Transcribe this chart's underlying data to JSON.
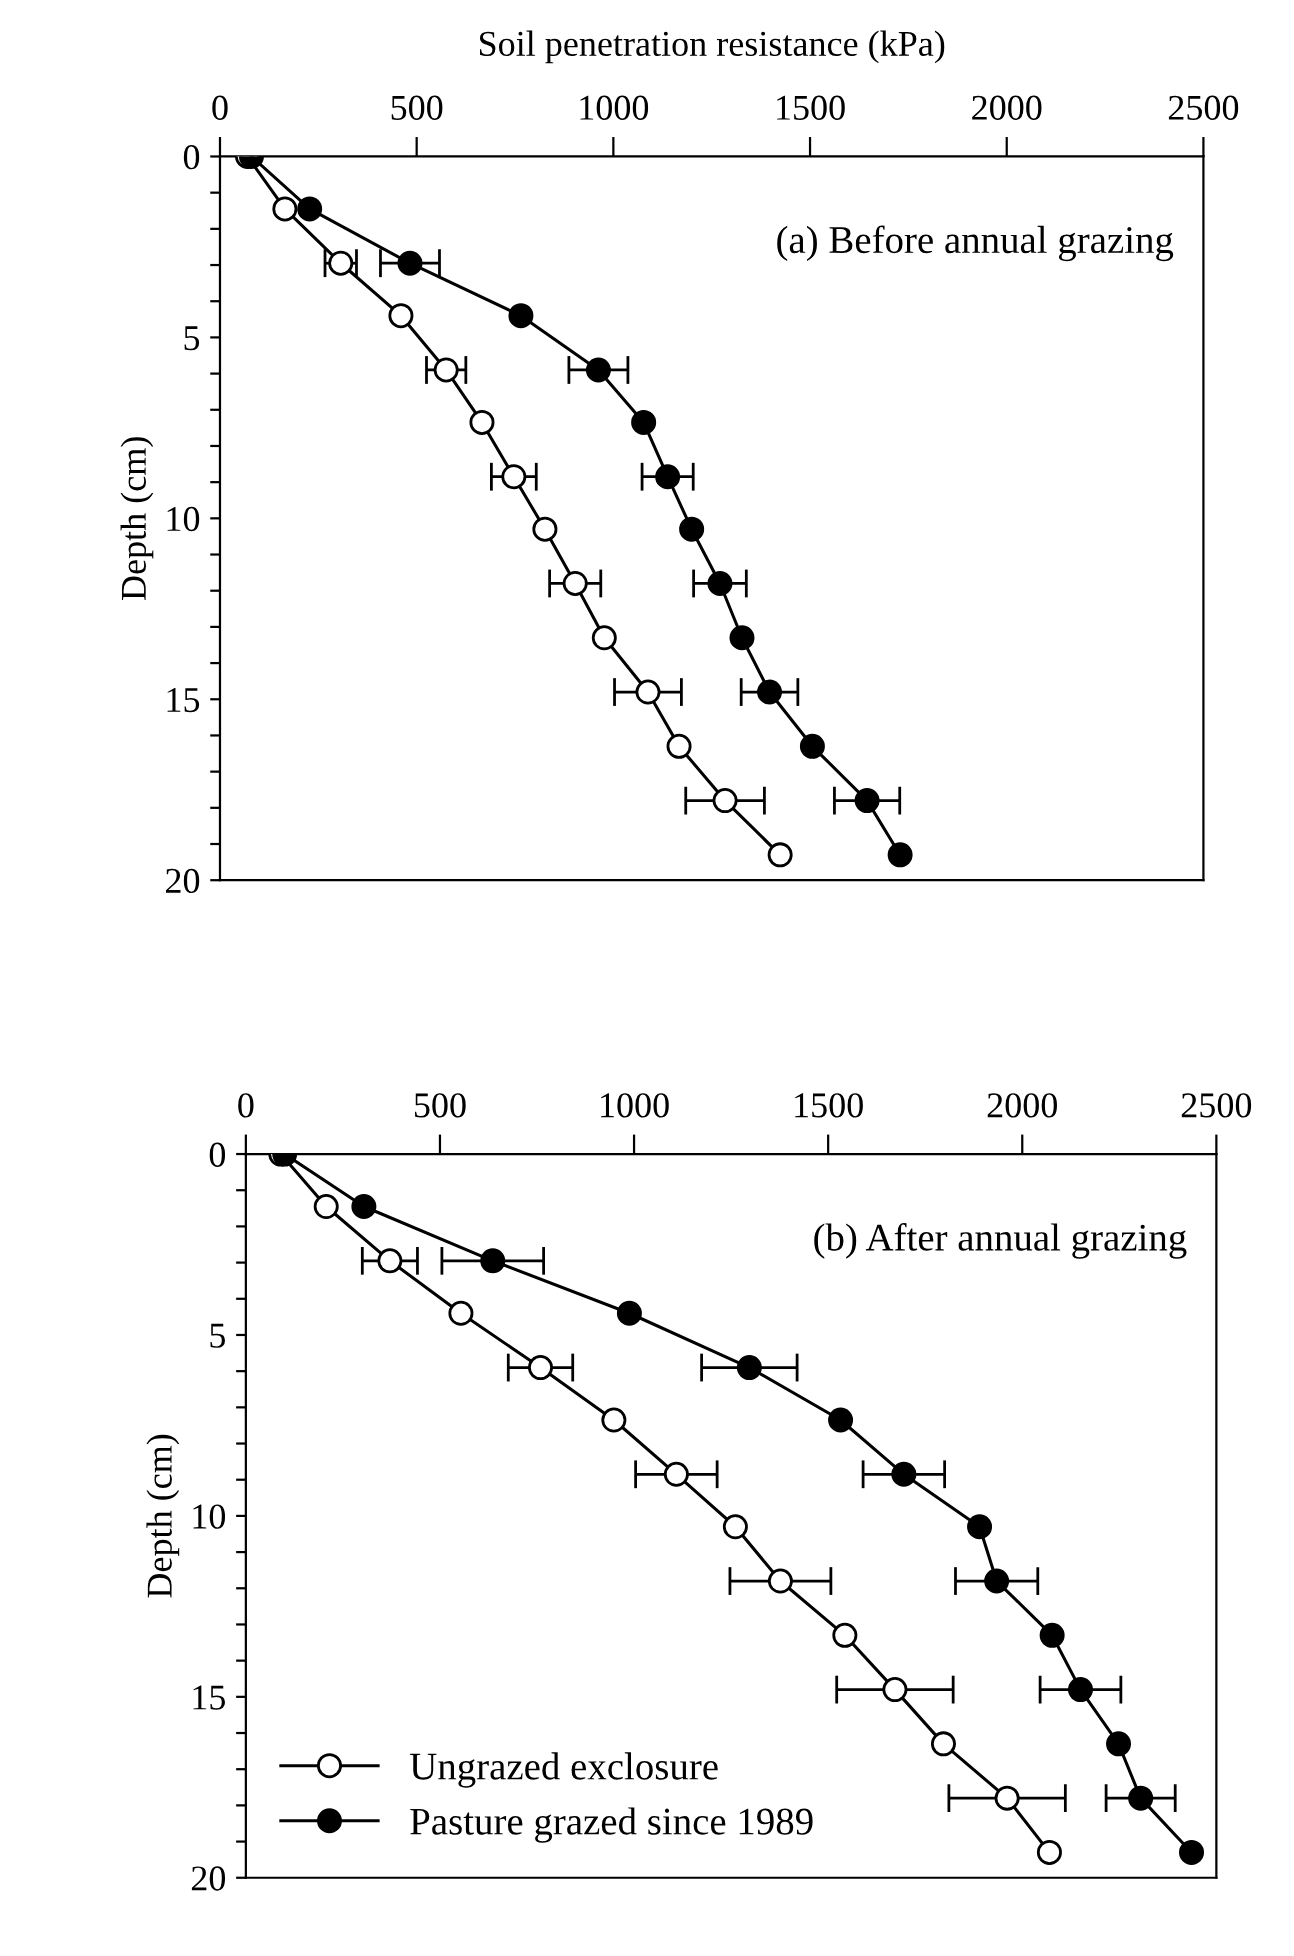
{
  "chart_data": [
    {
      "type": "line",
      "title": "(a) Before annual grazing",
      "xlabel": "Soil penetration resistance (kPa)",
      "ylabel": "Depth (cm)",
      "marker": "circle",
      "line_style": "solid",
      "grid": false,
      "legend": false,
      "xlim": [
        0,
        2500
      ],
      "xticks": [
        0,
        500,
        1000,
        1500,
        2000,
        2500
      ],
      "ylim": [
        20,
        0
      ],
      "yticks": [
        0,
        {
          "value": 1,
          "label": null
        },
        {
          "value": 2,
          "label": null
        },
        {
          "value": 3,
          "label": null
        },
        {
          "value": 4,
          "label": null
        },
        5,
        {
          "value": 6,
          "label": null
        },
        {
          "value": 7,
          "label": null
        },
        {
          "value": 8,
          "label": null
        },
        {
          "value": 9,
          "label": null
        },
        10,
        {
          "value": 11,
          "label": null
        },
        {
          "value": 12,
          "label": null
        },
        {
          "value": 13,
          "label": null
        },
        {
          "value": 14,
          "label": null
        },
        15,
        {
          "value": 16,
          "label": null
        },
        {
          "value": 17,
          "label": null
        },
        {
          "value": 18,
          "label": null
        },
        {
          "value": 19,
          "label": null
        },
        20
      ],
      "series": [
        {
          "color": "#ffffff",
          "x": [
            70,
            165,
            307,
            460,
            575,
            666,
            747,
            826,
            903,
            977,
            1088,
            1167,
            1284,
            1424
          ],
          "values": [
            0,
            1.45,
            2.95,
            4.4,
            5.9,
            7.35,
            8.85,
            10.3,
            11.8,
            13.3,
            14.8,
            16.3,
            17.8,
            19.3
          ],
          "xerrors": [
            null,
            null,
            40,
            null,
            50,
            null,
            57,
            null,
            65,
            null,
            85,
            null,
            100,
            null
          ]
        },
        {
          "color": "#000000",
          "x": [
            80,
            228,
            483,
            765,
            962,
            1077,
            1138,
            1199,
            1271,
            1327,
            1397,
            1506,
            1645,
            1729
          ],
          "values": [
            0,
            1.45,
            2.95,
            4.4,
            5.9,
            7.35,
            8.85,
            10.3,
            11.8,
            13.3,
            14.8,
            16.3,
            17.8,
            19.3
          ],
          "xerrors": [
            null,
            null,
            75,
            null,
            75,
            null,
            65,
            null,
            67,
            null,
            72,
            null,
            83,
            null
          ]
        }
      ]
    },
    {
      "type": "line",
      "title": "(b) After annual grazing",
      "ylabel": "Depth (cm)",
      "marker": "circle",
      "line_style": "solid",
      "grid": false,
      "legend": "bottom left",
      "xlim": [
        0,
        2500
      ],
      "xticks": [
        0,
        500,
        1000,
        1500,
        2000,
        2500
      ],
      "ylim": [
        20,
        0
      ],
      "yticks": [
        0,
        {
          "value": 1,
          "label": null
        },
        {
          "value": 2,
          "label": null
        },
        {
          "value": 3,
          "label": null
        },
        {
          "value": 4,
          "label": null
        },
        5,
        {
          "value": 6,
          "label": null
        },
        {
          "value": 7,
          "label": null
        },
        {
          "value": 8,
          "label": null
        },
        {
          "value": 9,
          "label": null
        },
        10,
        {
          "value": 11,
          "label": null
        },
        {
          "value": 12,
          "label": null
        },
        {
          "value": 13,
          "label": null
        },
        {
          "value": 14,
          "label": null
        },
        15,
        {
          "value": 16,
          "label": null
        },
        {
          "value": 17,
          "label": null
        },
        {
          "value": 18,
          "label": null
        },
        {
          "value": 19,
          "label": null
        },
        20
      ],
      "series": [
        {
          "name": "Ungrazed exclosure",
          "color": "#ffffff",
          "x": [
            90,
            207,
            371,
            554,
            759,
            948,
            1109,
            1261,
            1377,
            1543,
            1672,
            1797,
            1961,
            2070
          ],
          "values": [
            0,
            1.45,
            2.95,
            4.4,
            5.9,
            7.35,
            8.85,
            10.3,
            11.8,
            13.3,
            14.8,
            16.3,
            17.8,
            19.3
          ],
          "xerrors": [
            null,
            null,
            71,
            null,
            83,
            null,
            105,
            null,
            130,
            null,
            150,
            null,
            150,
            null
          ]
        },
        {
          "name": "Pasture grazed since 1989",
          "color": "#000000",
          "x": [
            100,
            304,
            636,
            988,
            1297,
            1532,
            1695,
            1890,
            1934,
            2077,
            2150,
            2248,
            2305,
            2436
          ],
          "values": [
            0,
            1.45,
            2.95,
            4.4,
            5.9,
            7.35,
            8.85,
            10.3,
            11.8,
            13.3,
            14.8,
            16.3,
            17.8,
            19.3
          ],
          "xerrors": [
            null,
            null,
            131,
            null,
            123,
            null,
            105,
            null,
            106,
            null,
            104,
            null,
            89,
            null
          ]
        }
      ]
    }
  ]
}
